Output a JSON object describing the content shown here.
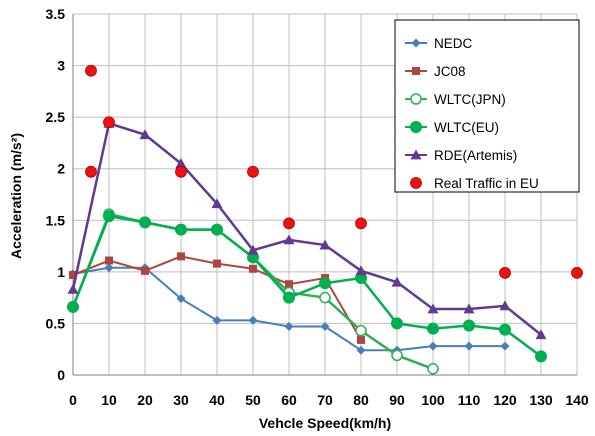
{
  "chart_data": {
    "type": "line",
    "xlabel": "Vehcle Speed(km/h)",
    "ylabel": "Acceleration (m/s²)",
    "xlim": [
      0,
      140
    ],
    "ylim": [
      0,
      3.5
    ],
    "x_ticks": [
      0,
      10,
      20,
      30,
      40,
      50,
      60,
      70,
      80,
      90,
      100,
      110,
      120,
      130,
      140
    ],
    "y_ticks": [
      0,
      0.5,
      1,
      1.5,
      2,
      2.5,
      3,
      3.5
    ],
    "y_tick_labels": [
      "0",
      "0.5",
      "1",
      "1.5",
      "2",
      "2.5",
      "3",
      "3.5"
    ],
    "grid": true,
    "legend_position": "top-right",
    "series": [
      {
        "name": "NEDC",
        "color": "#4a7ebb",
        "marker": "diamond",
        "line": true,
        "x": [
          0,
          10,
          20,
          30,
          40,
          50,
          60,
          70,
          80,
          90,
          100,
          110,
          120
        ],
        "y": [
          0.98,
          1.04,
          1.04,
          0.74,
          0.53,
          0.53,
          0.47,
          0.47,
          0.24,
          0.24,
          0.28,
          0.28,
          0.28
        ]
      },
      {
        "name": "JC08",
        "color": "#b0443e",
        "marker": "square",
        "line": true,
        "x": [
          0,
          10,
          20,
          30,
          40,
          50,
          60,
          70,
          80
        ],
        "y": [
          0.97,
          1.11,
          1.01,
          1.15,
          1.08,
          1.03,
          0.88,
          0.94,
          0.34
        ]
      },
      {
        "name": "WLTC(JPN)",
        "color": "#2db052",
        "marker": "open-circle",
        "line": true,
        "x": [
          0,
          10,
          20,
          30,
          40,
          50,
          60,
          70,
          80,
          90,
          100
        ],
        "y": [
          0.66,
          1.56,
          1.48,
          1.41,
          1.41,
          1.14,
          0.8,
          0.75,
          0.43,
          0.19,
          0.06
        ]
      },
      {
        "name": "WLTC(EU)",
        "color": "#00b050",
        "marker": "circle",
        "line": true,
        "x": [
          0,
          10,
          20,
          30,
          40,
          50,
          60,
          70,
          80,
          90,
          100,
          110,
          120,
          130
        ],
        "y": [
          0.66,
          1.54,
          1.48,
          1.41,
          1.41,
          1.14,
          0.75,
          0.89,
          0.94,
          0.5,
          0.45,
          0.48,
          0.44,
          0.18
        ]
      },
      {
        "name": "RDE(Artemis)",
        "color": "#603990",
        "marker": "triangle",
        "line": true,
        "x": [
          0,
          10,
          20,
          30,
          40,
          50,
          60,
          70,
          80,
          90,
          100,
          110,
          120,
          130
        ],
        "y": [
          0.83,
          2.44,
          2.33,
          2.05,
          1.66,
          1.21,
          1.31,
          1.26,
          1.01,
          0.9,
          0.64,
          0.64,
          0.67,
          0.39
        ]
      },
      {
        "name": "Real Traffic in EU",
        "color": "#ee1111",
        "marker": "big-circle",
        "line": false,
        "x": [
          5,
          5,
          10,
          30,
          50,
          60,
          80,
          120,
          140
        ],
        "y": [
          2.95,
          1.97,
          2.45,
          1.97,
          1.97,
          1.47,
          1.47,
          0.99,
          0.99
        ]
      }
    ]
  }
}
